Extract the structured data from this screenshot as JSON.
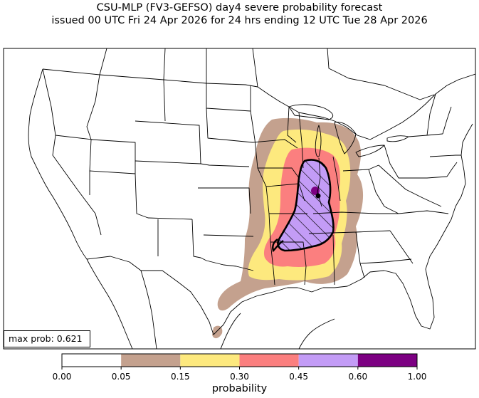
{
  "title": {
    "line1": "CSU-MLP (FV3-GEFSO) day4 severe probability forecast",
    "line2": "issued 00 UTC Fri 24 Apr 2026 for 24 hrs ending 12 UTC Tue 28 Apr 2026"
  },
  "max_prob_label": "max prob: 0.621",
  "colorbar": {
    "label": "probability",
    "ticks": [
      "0.00",
      "0.05",
      "0.15",
      "0.30",
      "0.45",
      "0.60",
      "1.00"
    ],
    "bins": [
      {
        "from": 0.0,
        "to": 0.05,
        "color": "#ffffff"
      },
      {
        "from": 0.05,
        "to": 0.15,
        "color": "#c4a18e"
      },
      {
        "from": 0.15,
        "to": 0.3,
        "color": "#fde97e"
      },
      {
        "from": 0.3,
        "to": 0.45,
        "color": "#fb7f7f"
      },
      {
        "from": 0.45,
        "to": 0.6,
        "color": "#c39cf6"
      },
      {
        "from": 0.6,
        "to": 1.0,
        "color": "#7c0082"
      }
    ]
  },
  "map": {
    "region": "Contiguous United States",
    "hatched_region": "significant severe",
    "contour_color": "#000000"
  }
}
